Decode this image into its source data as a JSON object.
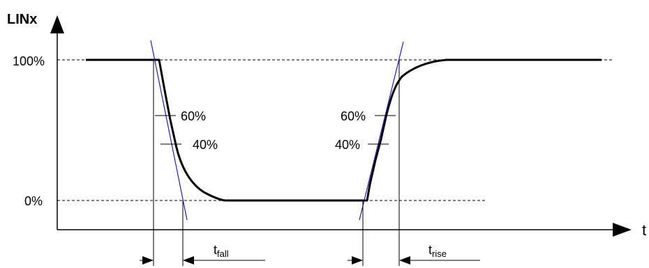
{
  "axes": {
    "y_label": "LINx",
    "x_label": "t",
    "level_high": "100%",
    "level_low": "0%"
  },
  "fall_edge": {
    "mark_upper": "60%",
    "mark_lower": "40%",
    "time_label_main": "t",
    "time_label_sub": "fall"
  },
  "rise_edge": {
    "mark_upper": "60%",
    "mark_lower": "40%",
    "time_label_main": "t",
    "time_label_sub": "rise"
  },
  "colors": {
    "signal": "#000000",
    "tangent": "#1f1fb8",
    "dashed": "#000000"
  }
}
